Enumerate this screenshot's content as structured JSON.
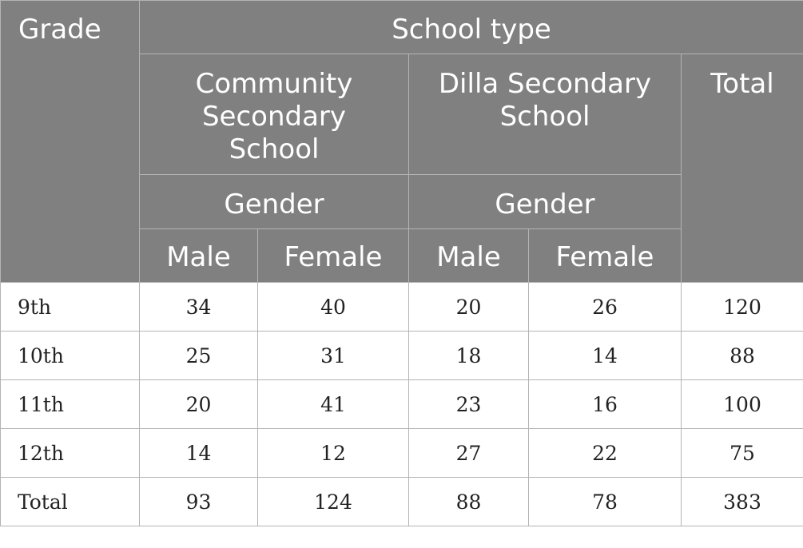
{
  "header": {
    "grade": "Grade",
    "school_type": "School type",
    "community": "Community Secondary School",
    "dilla": "Dilla Secondary School",
    "total": "Total",
    "gender": "Gender",
    "male": "Male",
    "female": "Female"
  },
  "rows": [
    {
      "grade": "9th",
      "c_male": "34",
      "c_female": "40",
      "d_male": "20",
      "d_female": "26",
      "total": "120"
    },
    {
      "grade": "10th",
      "c_male": "25",
      "c_female": "31",
      "d_male": "18",
      "d_female": "14",
      "total": "88"
    },
    {
      "grade": "11th",
      "c_male": "20",
      "c_female": "41",
      "d_male": "23",
      "d_female": "16",
      "total": "100"
    },
    {
      "grade": "12th",
      "c_male": "14",
      "c_female": "12",
      "d_male": "27",
      "d_female": "22",
      "total": "75"
    },
    {
      "grade": "Total",
      "c_male": "93",
      "c_female": "124",
      "d_male": "88",
      "d_female": "78",
      "total": "383"
    }
  ]
}
